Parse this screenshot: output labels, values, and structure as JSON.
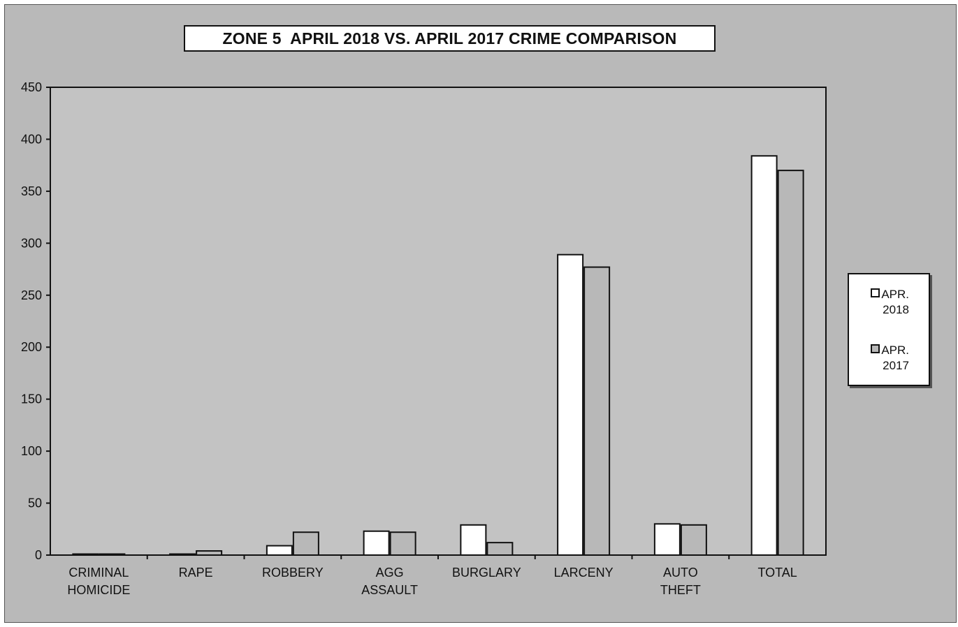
{
  "colors": {
    "background": "#b9b9b9",
    "plot_area": "#c3c3c3",
    "series_2018": "#ffffff",
    "series_2017": "#b8b8b8",
    "outline": "#111111"
  },
  "chart_data": {
    "type": "bar",
    "title": "ZONE 5  APRIL 2018 VS. APRIL 2017 CRIME COMPARISON",
    "categories": [
      [
        "CRIMINAL",
        "HOMICIDE"
      ],
      [
        "RAPE"
      ],
      [
        "ROBBERY"
      ],
      [
        "AGG",
        "ASSAULT"
      ],
      [
        "BURGLARY"
      ],
      [
        "LARCENY"
      ],
      [
        "AUTO",
        "THEFT"
      ],
      [
        "TOTAL"
      ]
    ],
    "series": [
      {
        "name": "APR. 2018",
        "legend_lines": [
          "APR.",
          "2018"
        ],
        "values": [
          0,
          1,
          9,
          23,
          29,
          289,
          30,
          384
        ]
      },
      {
        "name": "APR. 2017",
        "legend_lines": [
          "APR.",
          "2017"
        ],
        "values": [
          1,
          4,
          22,
          22,
          12,
          277,
          29,
          370
        ]
      }
    ],
    "ylim": [
      0,
      450
    ],
    "yticks": [
      0,
      50,
      100,
      150,
      200,
      250,
      300,
      350,
      400,
      450
    ],
    "xlabel": "",
    "ylabel": "",
    "grid": false,
    "legend_position": "right"
  }
}
